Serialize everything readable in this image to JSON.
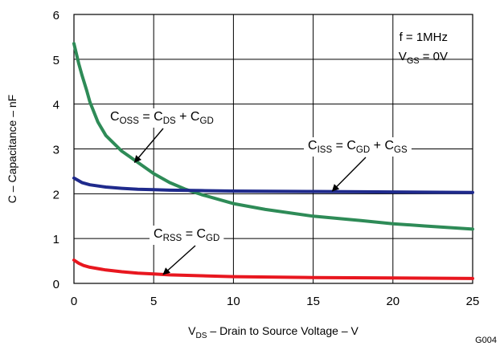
{
  "chart_data": {
    "type": "line",
    "title": "",
    "xlabel": {
      "pre": "V",
      "sub": "DS",
      "post": " – Drain to Source Voltage – V"
    },
    "ylabel": "C – Capacitance – nF",
    "xlim": [
      0,
      25
    ],
    "ylim": [
      0,
      6
    ],
    "xticks": [
      "0",
      "5",
      "10",
      "15",
      "20",
      "25"
    ],
    "yticks": [
      "0",
      "1",
      "2",
      "3",
      "4",
      "5",
      "6"
    ],
    "grid": true,
    "figure_id": "G004",
    "conditions": {
      "freq": "f = 1MHz",
      "vgs": {
        "pre": "V",
        "sub": "GS",
        "post": " = 0V"
      }
    },
    "series": [
      {
        "color": "#2E8B57",
        "x": [
          0,
          0.3,
          0.5,
          0.8,
          1,
          1.5,
          2,
          3,
          4,
          5,
          6,
          7,
          8,
          10,
          12,
          15,
          18,
          20,
          22,
          25
        ],
        "y": [
          5.35,
          4.9,
          4.65,
          4.3,
          4.05,
          3.6,
          3.3,
          2.95,
          2.7,
          2.45,
          2.25,
          2.1,
          1.98,
          1.78,
          1.65,
          1.5,
          1.4,
          1.33,
          1.28,
          1.21
        ]
      },
      {
        "color": "#1F2A8C",
        "x": [
          0,
          0.5,
          1,
          2,
          3,
          4,
          5,
          6,
          8,
          10,
          15,
          20,
          25
        ],
        "y": [
          2.35,
          2.25,
          2.2,
          2.15,
          2.12,
          2.1,
          2.09,
          2.08,
          2.07,
          2.06,
          2.05,
          2.04,
          2.03
        ]
      },
      {
        "color": "#E8171F",
        "x": [
          0,
          0.3,
          0.6,
          1,
          2,
          3,
          4,
          5,
          6,
          8,
          10,
          15,
          20,
          25
        ],
        "y": [
          0.52,
          0.45,
          0.4,
          0.36,
          0.3,
          0.26,
          0.23,
          0.21,
          0.19,
          0.17,
          0.15,
          0.13,
          0.12,
          0.11
        ]
      }
    ],
    "annotations": [
      {
        "parts": [
          [
            "C",
            "n"
          ],
          [
            "OSS",
            "s"
          ],
          [
            " = C",
            "n"
          ],
          [
            "DS",
            "s"
          ],
          [
            " + C",
            "n"
          ],
          [
            "GD",
            "s"
          ]
        ],
        "arrow_to": [
          3.8,
          2.7
        ]
      },
      {
        "parts": [
          [
            "C",
            "n"
          ],
          [
            "ISS",
            "s"
          ],
          [
            " = C",
            "n"
          ],
          [
            "GD",
            "s"
          ],
          [
            " + C",
            "n"
          ],
          [
            "GS",
            "s"
          ]
        ],
        "arrow_to": [
          16.2,
          2.06
        ]
      },
      {
        "parts": [
          [
            "C",
            "n"
          ],
          [
            "RSS",
            "s"
          ],
          [
            " = C",
            "n"
          ],
          [
            "GD",
            "s"
          ]
        ],
        "arrow_to": [
          5.6,
          0.2
        ]
      }
    ]
  }
}
